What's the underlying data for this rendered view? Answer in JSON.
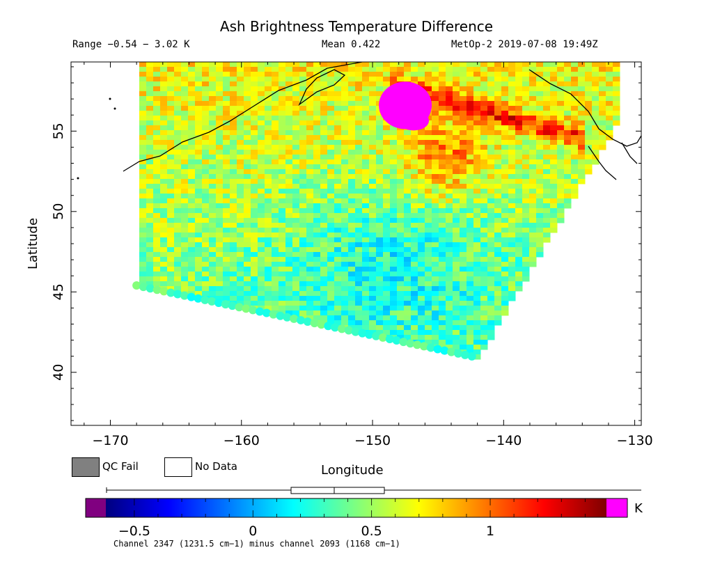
{
  "header": {
    "title": "Ash Brightness Temperature Difference",
    "range": "Range −0.54 − 3.02 K",
    "mean": "Mean 0.422",
    "meta": "MetOp-2 2019-07-08 19:49Z"
  },
  "axes": {
    "xlabel": "Longitude",
    "ylabel": "Latitude",
    "x_ticks": [
      "−170",
      "−160",
      "−150",
      "−140",
      "−130"
    ],
    "y_ticks": [
      "40",
      "45",
      "50",
      "55"
    ],
    "xlim": [
      -173,
      -129.5
    ],
    "ylim": [
      36.7,
      59.3
    ]
  },
  "legend": {
    "qc_fail": "QC Fail",
    "no_data": "No Data",
    "qc_fail_color": "#808080",
    "no_data_color": "#ffffff"
  },
  "colorbar": {
    "ticks": [
      "−0.5",
      "0",
      "0.5",
      "1"
    ],
    "unit": "K",
    "vmin": -0.62,
    "vmax": 1.49,
    "below_color": "#800080",
    "above_color": "#ff00ff",
    "stops": [
      "#00007f",
      "#0000ff",
      "#007fff",
      "#00ffff",
      "#7fff7f",
      "#ffff00",
      "#ff7f00",
      "#ff0000",
      "#7f0000"
    ]
  },
  "footer": {
    "channel": "Channel 2347 (1231.5 cm−1) minus channel 2093 (1168 cm−1)"
  },
  "map": {
    "swath_corners": [
      [
        -167.8,
        59.3
      ],
      [
        -131.3,
        59.3
      ],
      [
        -131.0,
        55.8
      ],
      [
        -141.9,
        40.9
      ],
      [
        -168.0,
        45.4
      ]
    ],
    "ash_plume_center": [
      -147.5,
      56.6
    ],
    "ash_value_above_max": true
  }
}
